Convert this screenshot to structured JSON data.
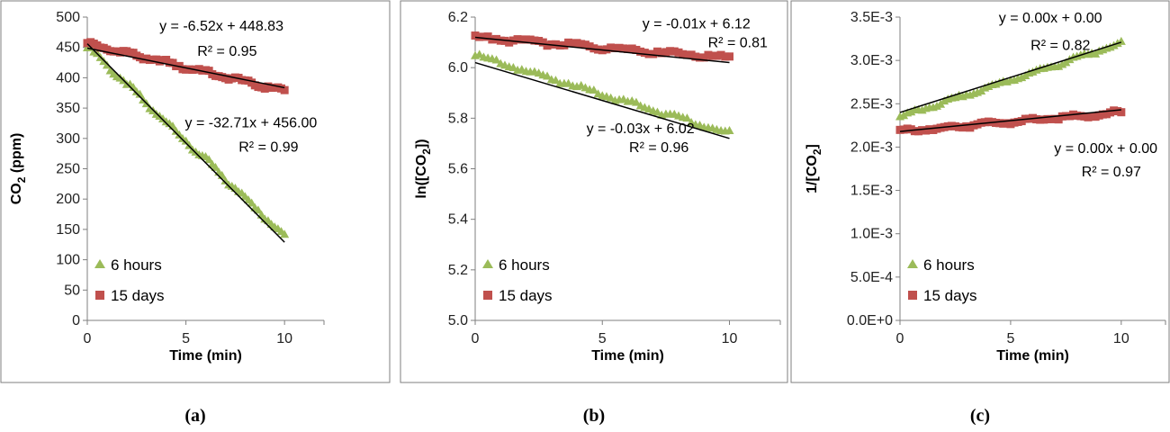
{
  "colors": {
    "six_hours": "#9bbb59",
    "fifteen_days": "#c0504d",
    "fit": "#000000"
  },
  "chart_data": [
    {
      "type": "scatter",
      "panel_label": "(a)",
      "xlabel": "Time (min)",
      "ylabel_main": "CO",
      "ylabel_sub": "2",
      "ylabel_tail": " (ppm)",
      "xlim": [
        0,
        12
      ],
      "ylim": [
        0,
        500
      ],
      "xticks": [
        0,
        5,
        10
      ],
      "xtick_labels": [
        "0",
        "5",
        "10"
      ],
      "yticks": [
        0,
        50,
        100,
        150,
        200,
        250,
        300,
        350,
        400,
        450,
        500
      ],
      "ytick_labels": [
        "0",
        "50",
        "100",
        "150",
        "200",
        "250",
        "300",
        "350",
        "400",
        "450",
        "500"
      ],
      "legend_position": "bottom-left",
      "series": [
        {
          "name": "6 hours",
          "marker": "triangle",
          "color": "#9bbb59",
          "y0": 452,
          "y1": 140,
          "noise": 6
        },
        {
          "name": "15 days",
          "marker": "square",
          "color": "#c0504d",
          "y0": 456,
          "y1": 378,
          "noise": 5
        }
      ],
      "fits": [
        {
          "x": [
            0,
            10
          ],
          "y": [
            448.83,
            383.63
          ],
          "eq": "y = -6.52x + 448.83",
          "r2": "R² = 0.95"
        },
        {
          "x": [
            0,
            10
          ],
          "y": [
            456.0,
            128.9
          ],
          "eq": "y = -32.71x + 456.00",
          "r2": "R² = 0.99"
        }
      ],
      "annotations": [
        {
          "text": "y = -6.52x + 448.83",
          "x": 6.8,
          "y": 478,
          "anchor": "middle"
        },
        {
          "text": "R² = 0.95",
          "x": 8.6,
          "y": 436,
          "anchor": "end"
        },
        {
          "text": "y = -32.71x + 456.00",
          "x": 8.3,
          "y": 318,
          "anchor": "middle"
        },
        {
          "text": "R² = 0.99",
          "x": 10.7,
          "y": 278,
          "anchor": "end"
        }
      ]
    },
    {
      "type": "scatter",
      "panel_label": "(b)",
      "xlabel": "Time (min)",
      "ylabel_main": "ln([CO",
      "ylabel_sub": "2",
      "ylabel_tail": "])",
      "xlim": [
        0,
        12
      ],
      "ylim": [
        5.0,
        6.2
      ],
      "xticks": [
        0,
        5,
        10
      ],
      "xtick_labels": [
        "0",
        "5",
        "10"
      ],
      "yticks": [
        5.0,
        5.2,
        5.4,
        5.6,
        5.8,
        6.0,
        6.2
      ],
      "ytick_labels": [
        "5.0",
        "5.2",
        "5.4",
        "5.6",
        "5.8",
        "6.0",
        "6.2"
      ],
      "legend_position": "bottom-left",
      "series": [
        {
          "name": "6 hours",
          "marker": "triangle",
          "color": "#9bbb59",
          "y0": 6.05,
          "y1": 5.74,
          "noise": 0.012
        },
        {
          "name": "15 days",
          "marker": "square",
          "color": "#c0504d",
          "y0": 6.12,
          "y1": 6.04,
          "noise": 0.012
        }
      ],
      "fits": [
        {
          "x": [
            0,
            10
          ],
          "y": [
            6.12,
            6.02
          ],
          "eq": "y = -0.01x + 6.12",
          "r2": "R² = 0.81"
        },
        {
          "x": [
            0,
            10
          ],
          "y": [
            6.02,
            5.72
          ],
          "eq": "y = -0.03x + 6.02",
          "r2": "R² = 0.96"
        }
      ],
      "annotations": [
        {
          "text": "y = -0.01x + 6.12",
          "x": 8.7,
          "y": 6.155,
          "anchor": "middle"
        },
        {
          "text": "R² = 0.81",
          "x": 11.5,
          "y": 6.08,
          "anchor": "end"
        },
        {
          "text": "y = -0.03x + 6.02",
          "x": 6.5,
          "y": 5.74,
          "anchor": "middle"
        },
        {
          "text": "R² = 0.96",
          "x": 8.4,
          "y": 5.665,
          "anchor": "end"
        }
      ]
    },
    {
      "type": "scatter",
      "panel_label": "(c)",
      "xlabel": "Time (min)",
      "ylabel_main": "1/[CO",
      "ylabel_sub": "2",
      "ylabel_tail": "]",
      "xlim": [
        0,
        12
      ],
      "ylim": [
        0,
        0.0035
      ],
      "xticks": [
        0,
        5,
        10
      ],
      "xtick_labels": [
        "0",
        "5",
        "10"
      ],
      "yticks": [
        0,
        0.0005,
        0.001,
        0.0015,
        0.002,
        0.0025,
        0.003,
        0.0035
      ],
      "ytick_labels": [
        "0.0E+0",
        "5.0E-4",
        "1.0E-3",
        "1.5E-3",
        "2.0E-3",
        "2.5E-3",
        "3.0E-3",
        "3.5E-3"
      ],
      "legend_position": "bottom-left",
      "series": [
        {
          "name": "6 hours",
          "marker": "triangle",
          "color": "#9bbb59",
          "y0": 0.00235,
          "y1": 0.0032,
          "noise": 3e-05
        },
        {
          "name": "15 days",
          "marker": "square",
          "color": "#c0504d",
          "y0": 0.00218,
          "y1": 0.0024,
          "noise": 3e-05
        }
      ],
      "fits": [
        {
          "x": [
            0,
            10
          ],
          "y": [
            0.0024,
            0.00321
          ],
          "eq": "y = 0.00x + 0.00",
          "r2": "R² = 0.82"
        },
        {
          "x": [
            0,
            10
          ],
          "y": [
            0.00218,
            0.00243
          ],
          "eq": "y = 0.00x + 0.00",
          "r2": "R² = 0.97"
        }
      ],
      "annotations": [
        {
          "text": "y = 0.00x + 0.00",
          "x": 6.8,
          "y": 0.00344,
          "anchor": "middle"
        },
        {
          "text": "R² = 0.82",
          "x": 8.6,
          "y": 0.00312,
          "anchor": "end"
        },
        {
          "text": "y = 0.00x + 0.00",
          "x": 9.3,
          "y": 0.00193,
          "anchor": "middle"
        },
        {
          "text": "R² = 0.97",
          "x": 10.9,
          "y": 0.00166,
          "anchor": "end"
        }
      ]
    }
  ]
}
